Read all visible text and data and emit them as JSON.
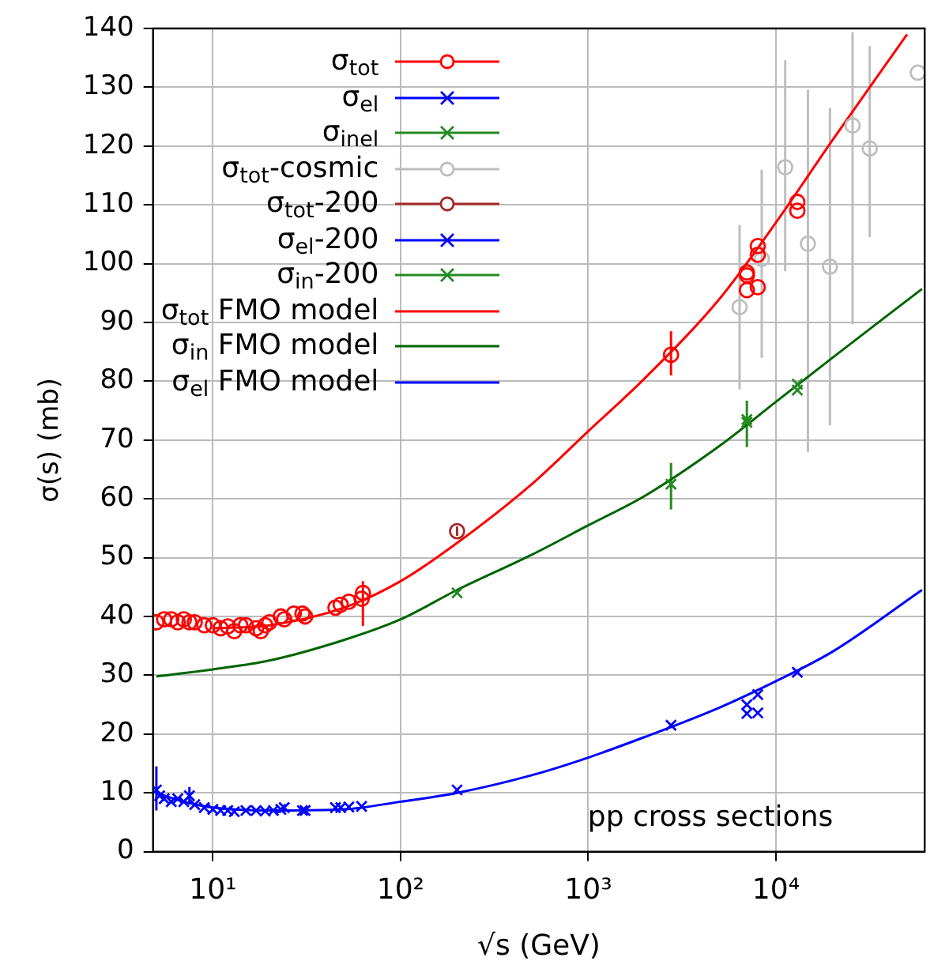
{
  "chart_data": {
    "type": "scatter",
    "xlabel": "√s (GeV)",
    "ylabel": "σ(s) (mb)",
    "log": "x",
    "grid": true,
    "legend": "top left",
    "xlim": [
      4.8,
      62000
    ],
    "xticks": [
      {
        "value": 10,
        "label": "10¹"
      },
      {
        "value": 100,
        "label": "10²"
      },
      {
        "value": 1000,
        "label": "10³"
      },
      {
        "value": 10000,
        "label": "10⁴"
      }
    ],
    "ylim": [
      0,
      140
    ],
    "yticks": [
      0,
      10,
      20,
      30,
      40,
      50,
      60,
      70,
      80,
      90,
      100,
      110,
      120,
      130,
      140
    ],
    "annotations": [
      "pp cross sections"
    ],
    "series": [
      {
        "name": "σ$_{tot}$",
        "color": "#ff0000",
        "marker": "circle",
        "x": [
          5,
          5.5,
          6,
          6.5,
          7,
          7.5,
          8,
          9,
          10,
          11,
          12,
          13,
          14,
          15,
          17,
          18,
          19,
          20,
          23,
          24,
          27,
          30,
          31,
          45,
          48,
          53,
          62,
          63,
          2760,
          7000,
          7000,
          7000,
          8000,
          8000,
          8000,
          13000,
          13000
        ],
        "values": [
          39,
          39.5,
          39.5,
          39,
          39.5,
          39,
          39,
          38.5,
          38.5,
          38,
          38.3,
          37.5,
          38.5,
          38.5,
          38,
          37.5,
          38.5,
          39,
          40,
          39.5,
          40.5,
          40.5,
          40,
          41.5,
          42,
          42.5,
          43,
          44,
          84.5,
          98.5,
          98,
          95.5,
          101.5,
          103,
          96,
          110.5,
          109
        ],
        "errors": [
          null,
          null,
          null,
          null,
          null,
          null,
          null,
          null,
          null,
          null,
          null,
          null,
          null,
          null,
          null,
          null,
          null,
          null,
          null,
          null,
          null,
          null,
          null,
          null,
          null,
          null,
          null,
          [
            38.4,
            46
          ],
          [
            81,
            88.5
          ],
          null,
          null,
          null,
          null,
          null,
          null,
          null,
          null
        ]
      },
      {
        "name": "σ$_{el}$",
        "color": "#0000ff",
        "marker": "cross",
        "x": [
          5,
          5.2,
          5.5,
          6,
          6.5,
          7,
          7.5,
          8,
          9,
          10,
          11,
          12,
          13,
          15,
          17,
          19,
          21,
          23,
          24,
          30,
          31,
          45,
          48,
          53,
          62,
          2760,
          7000,
          7000,
          8000,
          8000,
          13000
        ],
        "values": [
          10.5,
          9.5,
          9,
          8.5,
          9,
          8.5,
          9.5,
          8,
          7.5,
          7.2,
          7,
          7,
          6.8,
          7,
          7,
          6.9,
          7,
          7.2,
          7.5,
          7,
          7,
          7.5,
          7.5,
          7.6,
          7.7,
          21.5,
          25,
          23.5,
          26.7,
          23.6,
          30.5
        ],
        "errors": [
          [
            7,
            14.5
          ],
          null,
          null,
          null,
          null,
          null,
          [
            8,
            11
          ],
          null,
          null,
          null,
          null,
          null,
          null,
          null,
          null,
          null,
          null,
          null,
          null,
          null,
          null,
          null,
          null,
          null,
          null,
          null,
          null,
          null,
          null,
          null,
          null
        ]
      },
      {
        "name": "σ$_{inel}$",
        "color": "#228b22",
        "marker": "cross",
        "x": [
          2760,
          7000,
          7000,
          13000,
          13000
        ],
        "values": [
          62.5,
          73.5,
          73,
          78.5,
          79.5
        ],
        "errors": [
          [
            58.2,
            66.1
          ],
          [
            68.8,
            76.7
          ],
          null,
          null,
          null
        ]
      },
      {
        "name": "σ$_{tot}$-cosmic",
        "color": "#bebebe",
        "marker": "circle",
        "x": [
          6400,
          8400,
          11200,
          14800,
          19400,
          25600,
          31600,
          57000
        ],
        "values": [
          92.6,
          100.8,
          116.4,
          103.4,
          99.5,
          123.5,
          119.6,
          132.5
        ],
        "errors": [
          [
            78.6,
            106.6
          ],
          [
            84,
            116
          ],
          [
            98.7,
            134.6
          ],
          [
            68,
            129.6
          ],
          [
            72.5,
            126.5
          ],
          [
            89.7,
            139.4
          ],
          [
            104.5,
            137
          ],
          null
        ]
      },
      {
        "name": "σ$_{tot}$-200",
        "color": "#a52a2a",
        "marker": "circle",
        "x": [
          200
        ],
        "values": [
          54.5
        ],
        "errors": [
          [
            53.7,
            55.3
          ]
        ]
      },
      {
        "name": "σ$_{el}$-200",
        "color": "#0000ff",
        "marker": "cross",
        "x": [
          200
        ],
        "values": [
          10.5
        ]
      },
      {
        "name": "σ$_{in}$-200",
        "color": "#228b22",
        "marker": "cross",
        "x": [
          200
        ],
        "values": [
          44
        ]
      },
      {
        "name": "σ$_{tot}$ FMO model",
        "color": "#ff0000",
        "type": "line",
        "x": [
          10,
          20,
          50,
          100,
          200,
          500,
          1000,
          2000,
          5000,
          10000,
          20000,
          50000
        ],
        "values": [
          38,
          38.5,
          41.5,
          46,
          52.5,
          62.5,
          71.5,
          80.5,
          94,
          107,
          121,
          139
        ]
      },
      {
        "name": "σ$_{in}$ FMO model",
        "color": "#006400",
        "type": "line",
        "x": [
          5,
          10,
          20,
          50,
          100,
          200,
          500,
          1000,
          2000,
          5000,
          10000,
          20000,
          60000
        ],
        "values": [
          29.8,
          31,
          32.5,
          36,
          39.5,
          44.5,
          50.5,
          55.5,
          60.5,
          69,
          76.5,
          84,
          95.7
        ]
      },
      {
        "name": "σ$_{el}$ FMO model",
        "color": "#0000ff",
        "type": "line",
        "x": [
          5,
          7,
          10,
          20,
          50,
          100,
          200,
          500,
          1000,
          2000,
          5000,
          10000,
          20000,
          60000
        ],
        "values": [
          10,
          8.5,
          7.5,
          7,
          7.2,
          8.5,
          10,
          13,
          16,
          19.5,
          24.5,
          29,
          34,
          44.5
        ]
      }
    ]
  }
}
